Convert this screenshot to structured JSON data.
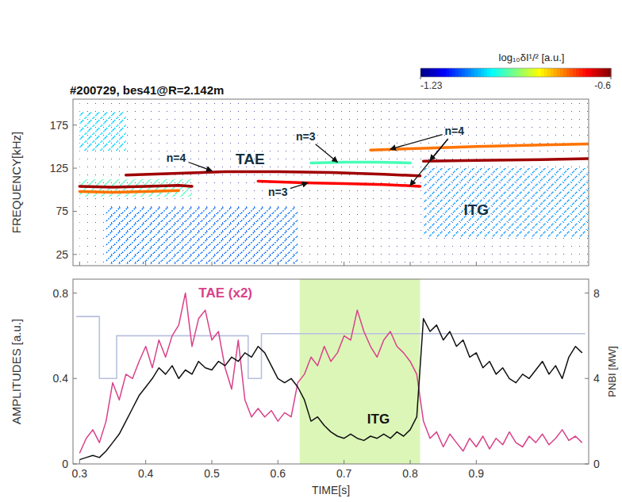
{
  "chart_data": [
    {
      "type": "spectrogram",
      "title": "#200729, bes41@R=2.142m",
      "y_label": "FREQUENCY[kHz]",
      "xlim": [
        0.29,
        1.07
      ],
      "ylim": [
        12,
        205
      ],
      "xticks": [
        0.3,
        0.4,
        0.5,
        0.6,
        0.7,
        0.8,
        0.9
      ],
      "yticks": [
        25,
        75,
        125,
        175
      ],
      "tick_labels": "y",
      "colorbar": {
        "label": "log₁₀δI¹/² [a.u.]",
        "range": [
          -1.23,
          -0.6
        ],
        "ticks": [
          -1.23,
          -0.6
        ]
      },
      "regions": [
        {
          "x": [
            0.3,
            1.07
          ],
          "y": [
            12,
            205
          ],
          "level": -1.22
        },
        {
          "x": [
            0.3,
            0.37
          ],
          "y": [
            145,
            190
          ],
          "level": -1.02
        },
        {
          "x": [
            0.34,
            0.63
          ],
          "y": [
            14,
            80
          ],
          "level": -1.08
        },
        {
          "x": [
            0.82,
            1.07
          ],
          "y": [
            45,
            125
          ],
          "level": -1.06
        },
        {
          "x": [
            0.3,
            0.47
          ],
          "y": [
            92,
            112
          ],
          "level": -0.95
        }
      ],
      "series": [
        {
          "x": [
            0.3,
            0.35,
            0.4,
            0.45,
            0.47
          ],
          "values": [
            104,
            103,
            104,
            105,
            104
          ],
          "level": -0.62
        },
        {
          "x": [
            0.3,
            0.35,
            0.4,
            0.45
          ],
          "values": [
            98,
            97,
            98,
            99
          ],
          "level": -0.75
        },
        {
          "x": [
            0.37,
            0.45,
            0.52,
            0.6,
            0.68,
            0.76,
            0.815
          ],
          "values": [
            117,
            119,
            121,
            121,
            120,
            118,
            116
          ],
          "level": -0.62
        },
        {
          "x": [
            0.57,
            0.64,
            0.7,
            0.76,
            0.815
          ],
          "values": [
            110,
            108,
            107,
            106,
            104
          ],
          "level": -0.68
        },
        {
          "x": [
            0.65,
            0.7,
            0.75,
            0.8
          ],
          "values": [
            131,
            132,
            132,
            131
          ],
          "level": -0.95
        },
        {
          "x": [
            0.82,
            0.9,
            1.0,
            1.07
          ],
          "values": [
            133,
            134,
            135,
            136
          ],
          "level": -0.62
        },
        {
          "x": [
            0.74,
            0.82,
            0.9,
            1.0,
            1.07
          ],
          "values": [
            146,
            148,
            150,
            152,
            153
          ],
          "level": -0.75
        }
      ],
      "annotations": [
        {
          "text": "n=4",
          "x": 0.446,
          "y": 137,
          "arrow_to": [
            [
              0.5,
              122
            ]
          ]
        },
        {
          "text": "TAE",
          "x": 0.558,
          "y": 136
        },
        {
          "text": "n=3",
          "x": 0.642,
          "y": 162,
          "arrow_to": [
            [
              0.69,
              132
            ]
          ]
        },
        {
          "text": "n=3",
          "x": 0.6,
          "y": 97,
          "arrow_to": [
            [
              0.645,
              108
            ]
          ]
        },
        {
          "text": "n=4",
          "x": 0.867,
          "y": 168,
          "arrow_to": [
            [
              0.77,
              147
            ],
            [
              0.83,
              134
            ],
            [
              0.8,
              105
            ]
          ]
        },
        {
          "text": "ITG",
          "x": 0.9,
          "y": 77
        }
      ]
    },
    {
      "type": "line",
      "x_label": "TIME[s]",
      "y_label": "AMPLITUDES [a.u.]",
      "y2_label": "PNBI [MW]",
      "xlim": [
        0.29,
        1.07
      ],
      "ylim": [
        0,
        0.865
      ],
      "y2lim": [
        0,
        8.65
      ],
      "xticks": [
        0.3,
        0.4,
        0.5,
        0.6,
        0.7,
        0.8,
        0.9
      ],
      "yticks": [
        0,
        0.4,
        0.8
      ],
      "y2ticks": [
        0,
        4,
        8
      ],
      "highlight": {
        "x": [
          0.633,
          0.815
        ],
        "color": "#dcf6b8"
      },
      "x": [
        0.3,
        0.31,
        0.32,
        0.33,
        0.34,
        0.35,
        0.36,
        0.37,
        0.38,
        0.39,
        0.4,
        0.41,
        0.42,
        0.43,
        0.44,
        0.45,
        0.46,
        0.47,
        0.48,
        0.49,
        0.5,
        0.51,
        0.52,
        0.53,
        0.54,
        0.55,
        0.56,
        0.57,
        0.58,
        0.59,
        0.6,
        0.61,
        0.62,
        0.63,
        0.64,
        0.65,
        0.66,
        0.67,
        0.68,
        0.69,
        0.7,
        0.71,
        0.72,
        0.73,
        0.74,
        0.75,
        0.76,
        0.77,
        0.78,
        0.79,
        0.8,
        0.81,
        0.82,
        0.83,
        0.84,
        0.85,
        0.86,
        0.87,
        0.88,
        0.89,
        0.9,
        0.91,
        0.92,
        0.93,
        0.94,
        0.95,
        0.96,
        0.97,
        0.98,
        0.99,
        1.0,
        1.01,
        1.02,
        1.03,
        1.04,
        1.05,
        1.06
      ],
      "series": [
        {
          "x": [
            0.295,
            0.33,
            0.356,
            0.555,
            0.575,
            1.065
          ],
          "values": [
            6.9,
            4.0,
            6.0,
            4.0,
            6.1,
            6.1
          ],
          "color": "#b9c0de",
          "axis": "y2",
          "line_style": "step"
        },
        {
          "color": "#d9418a",
          "values": [
            0.05,
            0.12,
            0.16,
            0.1,
            0.2,
            0.38,
            0.3,
            0.42,
            0.4,
            0.48,
            0.55,
            0.45,
            0.58,
            0.5,
            0.6,
            0.65,
            0.8,
            0.55,
            0.68,
            0.72,
            0.58,
            0.62,
            0.45,
            0.35,
            0.58,
            0.3,
            0.22,
            0.26,
            0.22,
            0.25,
            0.2,
            0.24,
            0.22,
            0.38,
            0.42,
            0.5,
            0.46,
            0.55,
            0.48,
            0.52,
            0.6,
            0.58,
            0.72,
            0.62,
            0.55,
            0.5,
            0.58,
            0.62,
            0.55,
            0.52,
            0.48,
            0.42,
            0.2,
            0.12,
            0.15,
            0.08,
            0.14,
            0.1,
            0.06,
            0.12,
            0.08,
            0.13,
            0.07,
            0.12,
            0.09,
            0.15,
            0.1,
            0.08,
            0.13,
            0.1,
            0.14,
            0.09,
            0.12,
            0.16,
            0.11,
            0.13,
            0.1
          ]
        },
        {
          "color": "#111111",
          "values": [
            0.02,
            0.03,
            0.04,
            0.03,
            0.06,
            0.1,
            0.14,
            0.2,
            0.26,
            0.32,
            0.36,
            0.4,
            0.45,
            0.42,
            0.46,
            0.4,
            0.44,
            0.42,
            0.48,
            0.45,
            0.44,
            0.48,
            0.46,
            0.5,
            0.48,
            0.52,
            0.5,
            0.55,
            0.52,
            0.46,
            0.4,
            0.38,
            0.4,
            0.36,
            0.3,
            0.2,
            0.22,
            0.18,
            0.15,
            0.13,
            0.12,
            0.14,
            0.12,
            0.11,
            0.13,
            0.12,
            0.14,
            0.12,
            0.15,
            0.13,
            0.16,
            0.22,
            0.68,
            0.62,
            0.65,
            0.58,
            0.62,
            0.55,
            0.58,
            0.5,
            0.52,
            0.45,
            0.48,
            0.42,
            0.45,
            0.4,
            0.38,
            0.42,
            0.4,
            0.44,
            0.48,
            0.42,
            0.46,
            0.4,
            0.5,
            0.55,
            0.52
          ]
        }
      ],
      "annotations": [
        {
          "text": "TAE (x2)",
          "x": 0.48,
          "y": 0.78,
          "color": "#d9418a"
        },
        {
          "text": "ITG",
          "x": 0.735,
          "y": 0.19,
          "color": "#111111"
        }
      ]
    }
  ]
}
